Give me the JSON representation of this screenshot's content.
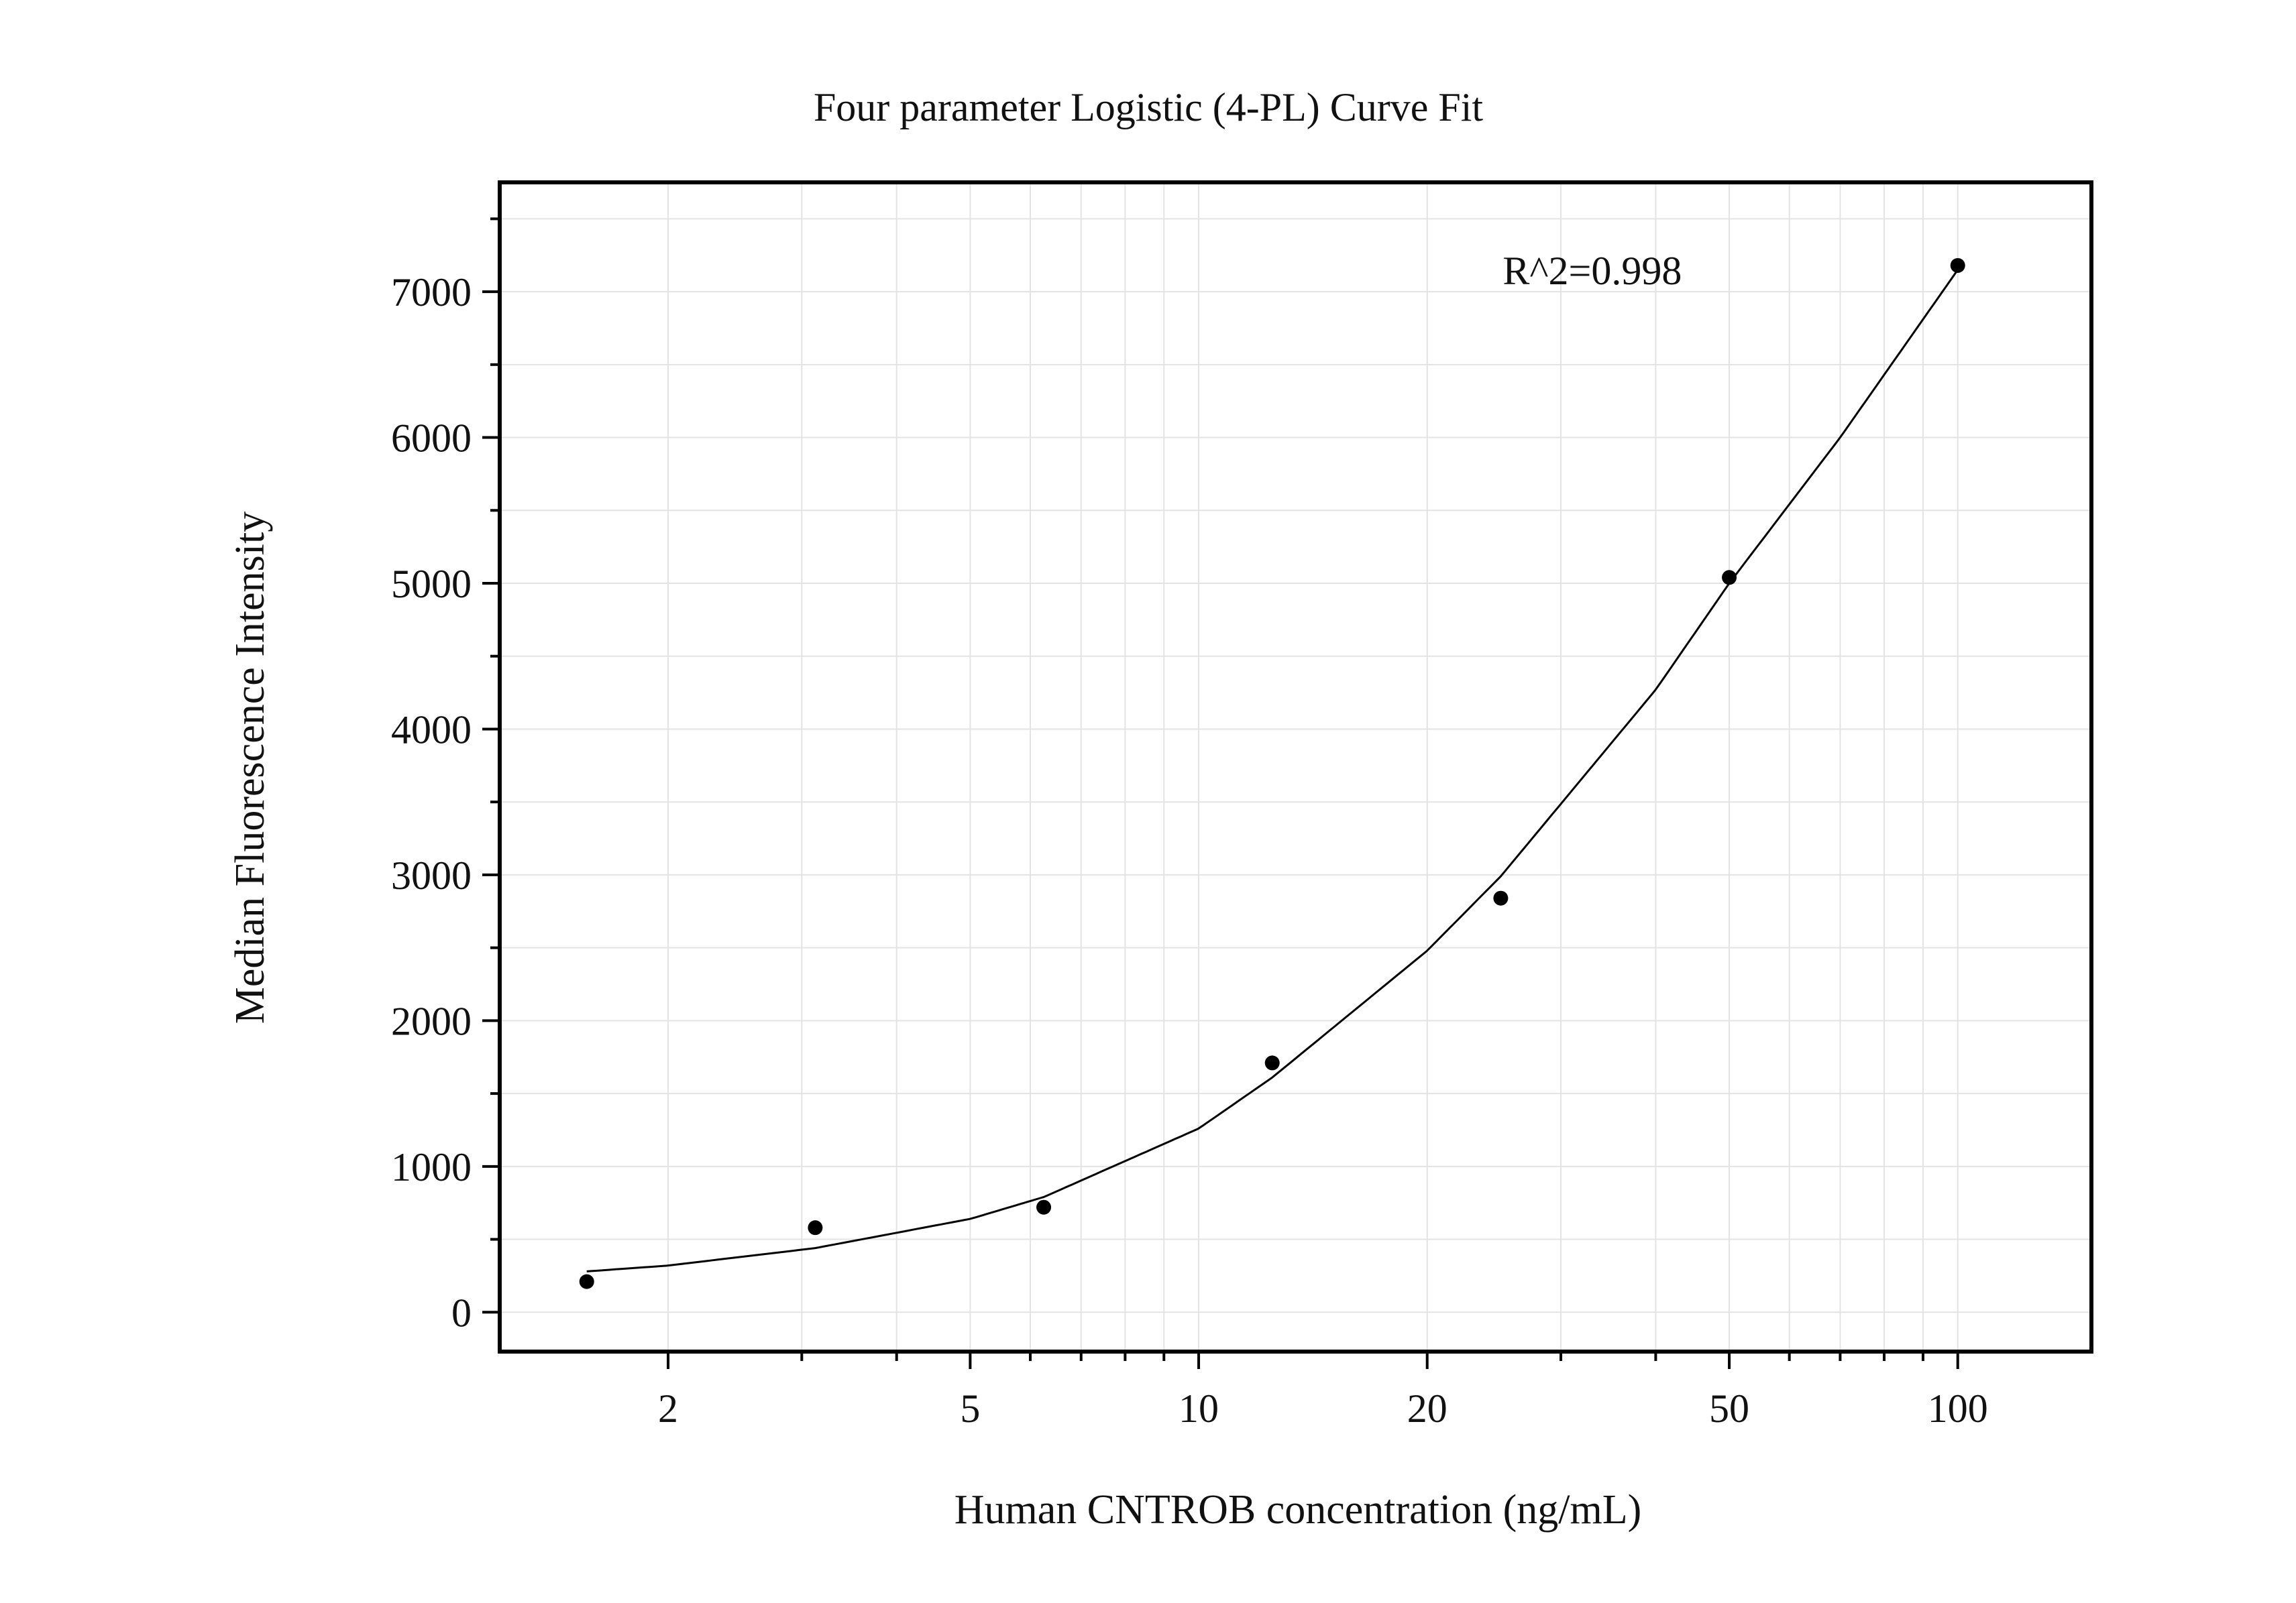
{
  "chart_data": {
    "type": "scatter",
    "title": "Four parameter Logistic (4-PL) Curve Fit",
    "xlabel": "Human CNTROB concentration (ng/mL)",
    "ylabel": "Median Fluorescence Intensity",
    "x_scale": "log",
    "xlim": [
      1.2,
      150
    ],
    "ylim": [
      -270,
      7750
    ],
    "x_ticks": [
      2,
      5,
      10,
      20,
      50,
      100
    ],
    "x_tick_labels": [
      "2",
      "5",
      "10",
      "20",
      "50",
      "100"
    ],
    "y_ticks": [
      0,
      1000,
      2000,
      3000,
      4000,
      5000,
      6000,
      7000
    ],
    "y_tick_labels": [
      "0",
      "1000",
      "2000",
      "3000",
      "4000",
      "5000",
      "6000",
      "7000"
    ],
    "grid": true,
    "legend": "none",
    "series": [
      {
        "type": "scatter",
        "x": [
          1.5625,
          3.125,
          6.25,
          12.5,
          25,
          50,
          100
        ],
        "y": [
          210,
          580,
          720,
          1710,
          2840,
          5040,
          7180
        ]
      },
      {
        "type": "line",
        "x": [
          1.5625,
          2,
          3.125,
          5,
          6.25,
          10,
          12.5,
          20,
          25,
          40,
          50,
          70,
          100
        ],
        "y": [
          280,
          320,
          440,
          640,
          790,
          1260,
          1610,
          2480,
          2990,
          4270,
          5000,
          6000,
          7150
        ]
      }
    ],
    "annotations": [
      {
        "text": "R^2=0.998",
        "x": 33,
        "y": 7050
      }
    ],
    "colors": {
      "marker": "#000000",
      "curve": "#000000",
      "grid": "#e3e3e3",
      "frame": "#000000"
    }
  }
}
